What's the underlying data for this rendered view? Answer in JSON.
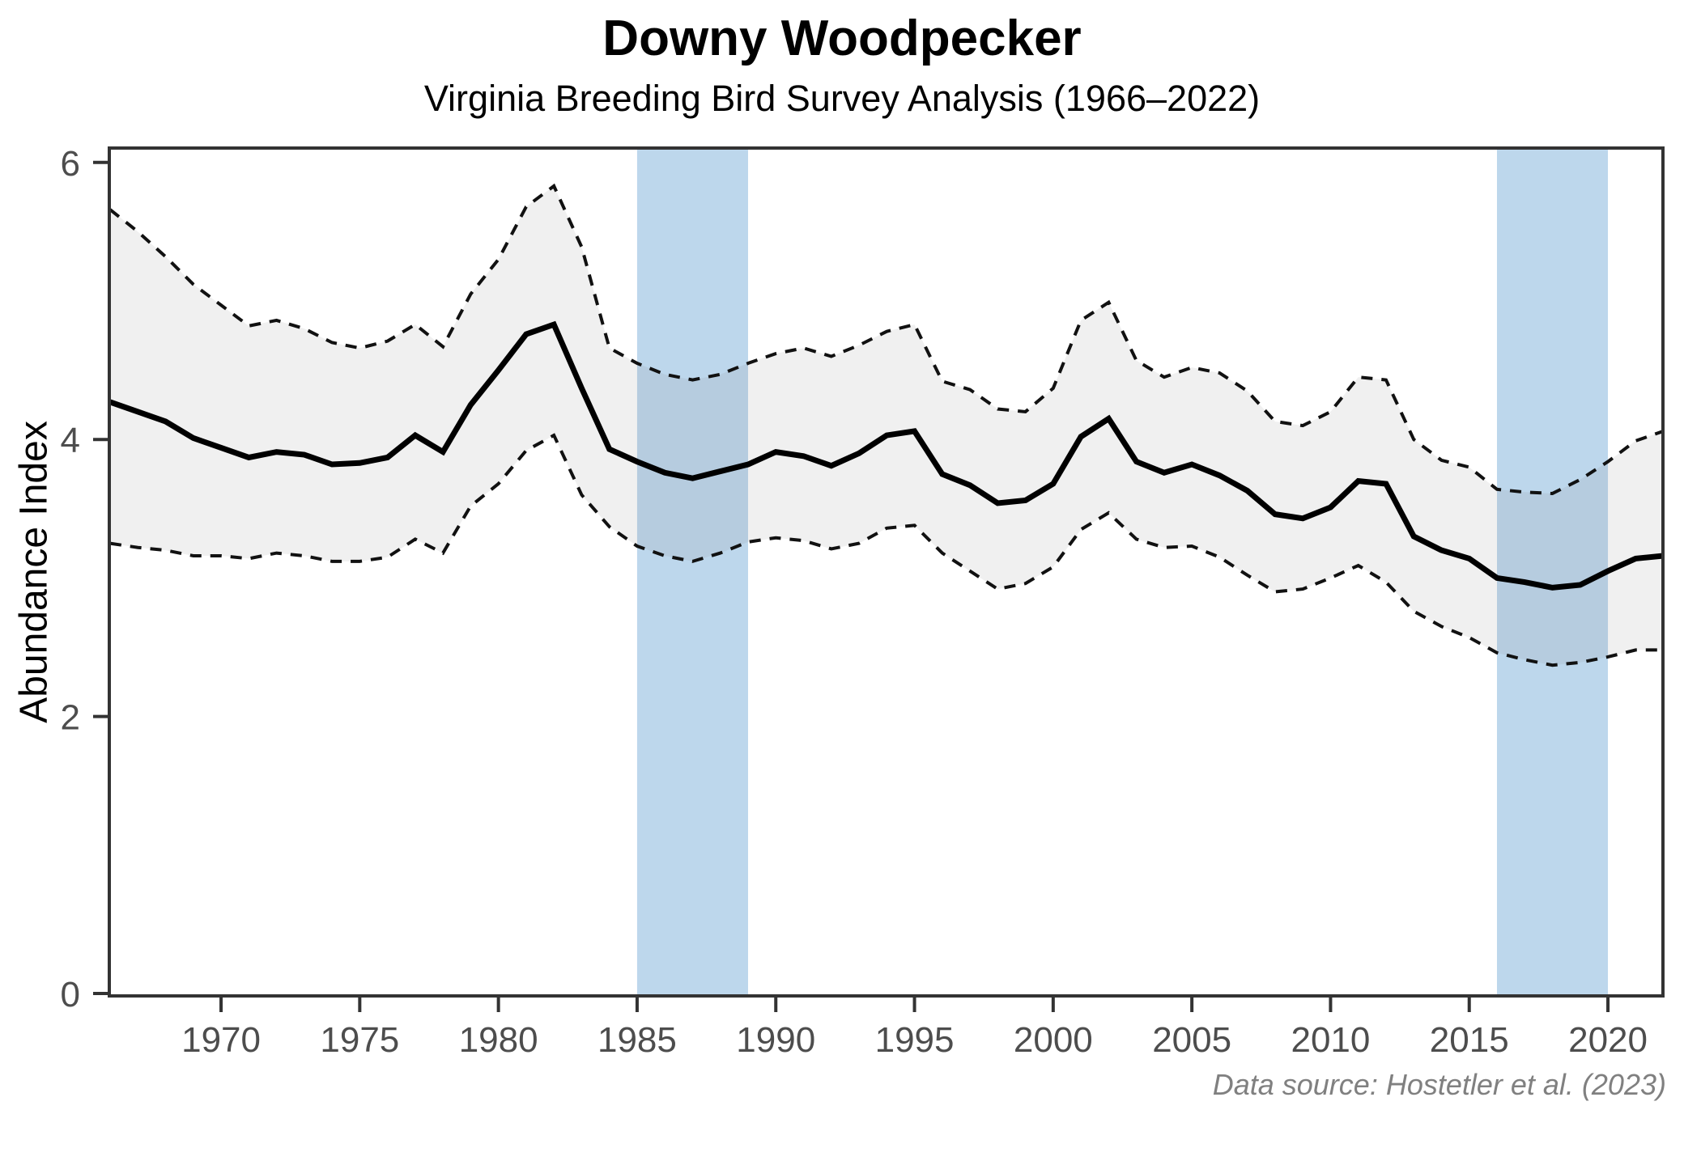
{
  "header": {
    "title": "Downy Woodpecker",
    "subtitle": "Virginia Breeding Bird Survey Analysis (1966–2022)"
  },
  "caption": "Data source: Hostetler et al. (2023)",
  "chart_data": {
    "type": "line",
    "title": "Downy Woodpecker",
    "subtitle": "Virginia Breeding Bird Survey Analysis (1966–2022)",
    "xlabel": "",
    "ylabel": "Abundance Index",
    "xlim": [
      1966,
      2022
    ],
    "ylim": [
      0,
      6
    ],
    "grid": false,
    "legend": "none",
    "x_ticks": [
      1970,
      1975,
      1980,
      1985,
      1990,
      1995,
      2000,
      2005,
      2010,
      2015,
      2020
    ],
    "y_ticks": [
      0,
      2,
      4,
      6
    ],
    "x": [
      1966,
      1967,
      1968,
      1969,
      1970,
      1971,
      1972,
      1973,
      1974,
      1975,
      1976,
      1977,
      1978,
      1979,
      1980,
      1981,
      1982,
      1983,
      1984,
      1985,
      1986,
      1987,
      1988,
      1989,
      1990,
      1991,
      1992,
      1993,
      1994,
      1995,
      1996,
      1997,
      1998,
      1999,
      2000,
      2001,
      2002,
      2003,
      2004,
      2005,
      2006,
      2007,
      2008,
      2009,
      2010,
      2011,
      2012,
      2013,
      2014,
      2015,
      2016,
      2017,
      2018,
      2019,
      2020,
      2021,
      2022
    ],
    "series": [
      {
        "name": "Abundance index (annual estimate)",
        "style": "solid",
        "values": [
          4.27,
          4.2,
          4.13,
          4.01,
          3.94,
          3.87,
          3.91,
          3.89,
          3.82,
          3.83,
          3.87,
          4.03,
          3.91,
          4.25,
          4.5,
          4.76,
          4.83,
          4.37,
          3.93,
          3.84,
          3.76,
          3.72,
          3.77,
          3.82,
          3.91,
          3.88,
          3.81,
          3.9,
          4.03,
          4.06,
          3.75,
          3.67,
          3.54,
          3.56,
          3.68,
          4.02,
          4.15,
          3.84,
          3.76,
          3.82,
          3.74,
          3.63,
          3.46,
          3.43,
          3.51,
          3.7,
          3.68,
          3.3,
          3.2,
          3.14,
          3.0,
          2.97,
          2.93,
          2.95,
          3.05,
          3.14,
          3.16
        ]
      },
      {
        "name": "Upper credible interval",
        "style": "dashed",
        "values": [
          5.66,
          5.5,
          5.32,
          5.12,
          4.97,
          4.82,
          4.86,
          4.8,
          4.7,
          4.66,
          4.71,
          4.83,
          4.67,
          5.05,
          5.3,
          5.68,
          5.83,
          5.39,
          4.66,
          4.55,
          4.47,
          4.43,
          4.47,
          4.55,
          4.62,
          4.66,
          4.6,
          4.68,
          4.78,
          4.83,
          4.42,
          4.36,
          4.22,
          4.2,
          4.37,
          4.86,
          4.99,
          4.57,
          4.45,
          4.52,
          4.48,
          4.35,
          4.13,
          4.1,
          4.2,
          4.45,
          4.43,
          4.0,
          3.85,
          3.8,
          3.64,
          3.62,
          3.61,
          3.71,
          3.84,
          3.99,
          4.06
        ]
      },
      {
        "name": "Lower credible interval",
        "style": "dashed",
        "values": [
          3.25,
          3.22,
          3.2,
          3.16,
          3.16,
          3.14,
          3.18,
          3.16,
          3.12,
          3.12,
          3.15,
          3.28,
          3.18,
          3.52,
          3.68,
          3.92,
          4.03,
          3.6,
          3.37,
          3.23,
          3.16,
          3.12,
          3.18,
          3.26,
          3.29,
          3.27,
          3.21,
          3.25,
          3.36,
          3.38,
          3.18,
          3.05,
          2.92,
          2.96,
          3.08,
          3.35,
          3.47,
          3.28,
          3.22,
          3.23,
          3.15,
          3.02,
          2.9,
          2.92,
          3.0,
          3.09,
          2.97,
          2.76,
          2.65,
          2.57,
          2.46,
          2.41,
          2.37,
          2.39,
          2.43,
          2.48,
          2.48
        ]
      }
    ],
    "highlight_bands": [
      {
        "x_start": 1985,
        "x_end": 1989
      },
      {
        "x_start": 2016,
        "x_end": 2020
      }
    ],
    "colors": {
      "band_fill": "#bdd7ec",
      "ribbon_fill": "rgba(128,128,128,0.12)",
      "solid_line": "#000000",
      "dashed_line": "#111111",
      "axis": "#333333",
      "tick_label": "#4d4d4d",
      "background": "#ffffff"
    }
  }
}
